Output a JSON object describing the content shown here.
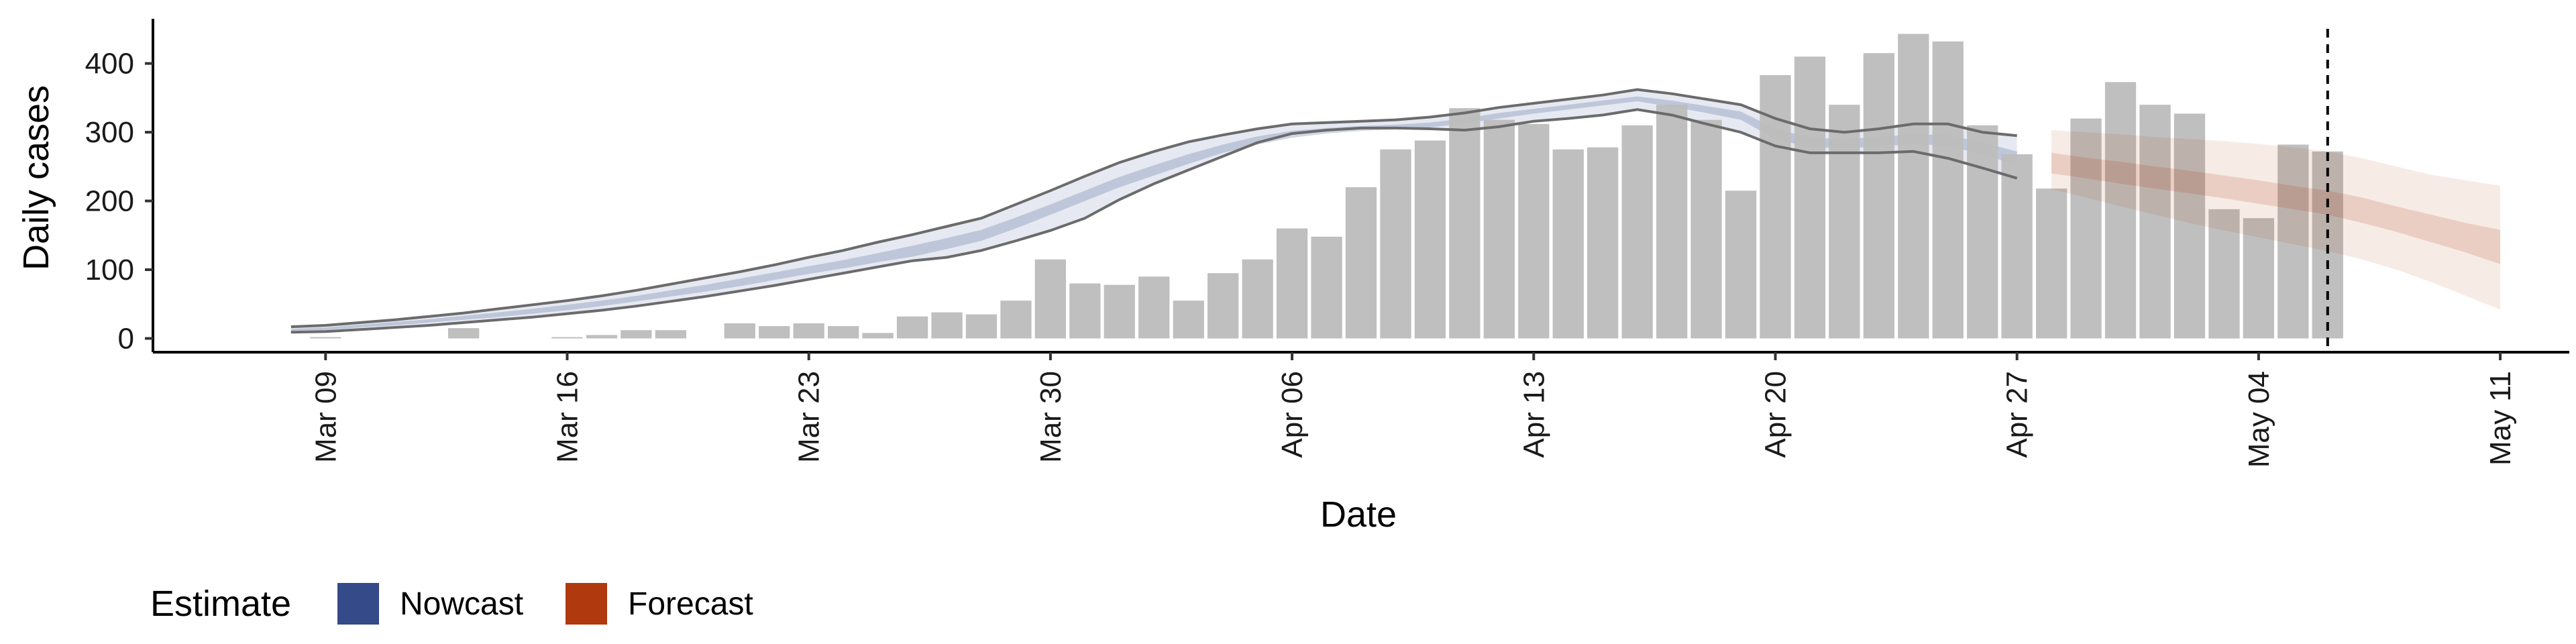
{
  "chart_data": {
    "type": "bar",
    "xlabel": "Date",
    "ylabel": "Daily cases",
    "x_type": "date",
    "ylim": [
      -20,
      465
    ],
    "xlim": [
      "2020-03-04",
      "2020-05-13"
    ],
    "x_ticks": [
      {
        "date": "2020-03-09",
        "label": "Mar 09"
      },
      {
        "date": "2020-03-16",
        "label": "Mar 16"
      },
      {
        "date": "2020-03-23",
        "label": "Mar 23"
      },
      {
        "date": "2020-03-30",
        "label": "Mar 30"
      },
      {
        "date": "2020-04-06",
        "label": "Apr 06"
      },
      {
        "date": "2020-04-13",
        "label": "Apr 13"
      },
      {
        "date": "2020-04-20",
        "label": "Apr 20"
      },
      {
        "date": "2020-04-27",
        "label": "Apr 27"
      },
      {
        "date": "2020-05-04",
        "label": "May 04"
      },
      {
        "date": "2020-05-11",
        "label": "May 11"
      }
    ],
    "y_ticks": [
      0,
      100,
      200,
      300,
      400
    ],
    "grid": false,
    "legend_position": "bottom-left",
    "legend": {
      "title": "Estimate",
      "items": [
        {
          "label": "Nowcast",
          "color": "#344a89"
        },
        {
          "label": "Forecast",
          "color": "#b0390d"
        }
      ]
    },
    "observed_cases": {
      "color": "#bdbdbd",
      "dates": [
        "2020-03-08",
        "2020-03-09",
        "2020-03-10",
        "2020-03-11",
        "2020-03-12",
        "2020-03-13",
        "2020-03-14",
        "2020-03-15",
        "2020-03-16",
        "2020-03-17",
        "2020-03-18",
        "2020-03-19",
        "2020-03-20",
        "2020-03-21",
        "2020-03-22",
        "2020-03-23",
        "2020-03-24",
        "2020-03-25",
        "2020-03-26",
        "2020-03-27",
        "2020-03-28",
        "2020-03-29",
        "2020-03-30",
        "2020-03-31",
        "2020-04-01",
        "2020-04-02",
        "2020-04-03",
        "2020-04-04",
        "2020-04-05",
        "2020-04-06",
        "2020-04-07",
        "2020-04-08",
        "2020-04-09",
        "2020-04-10",
        "2020-04-11",
        "2020-04-12",
        "2020-04-13",
        "2020-04-14",
        "2020-04-15",
        "2020-04-16",
        "2020-04-17",
        "2020-04-18",
        "2020-04-19",
        "2020-04-20",
        "2020-04-21",
        "2020-04-22",
        "2020-04-23",
        "2020-04-24",
        "2020-04-25",
        "2020-04-26",
        "2020-04-27",
        "2020-04-28",
        "2020-04-29",
        "2020-04-30",
        "2020-05-01",
        "2020-05-02",
        "2020-05-03",
        "2020-05-04",
        "2020-05-05",
        "2020-05-06"
      ],
      "values": [
        0,
        2,
        0,
        0,
        0,
        15,
        0,
        0,
        2,
        5,
        12,
        12,
        0,
        22,
        18,
        22,
        18,
        8,
        32,
        38,
        35,
        55,
        115,
        80,
        78,
        90,
        55,
        95,
        115,
        160,
        148,
        220,
        275,
        288,
        335,
        318,
        312,
        275,
        278,
        310,
        340,
        318,
        215,
        383,
        410,
        340,
        415,
        443,
        432,
        310,
        268,
        218,
        320,
        373,
        340,
        327,
        188,
        175,
        282,
        272
      ]
    },
    "nowcast": {
      "color": "#344a89",
      "dates": [
        "2020-03-08",
        "2020-03-09",
        "2020-03-10",
        "2020-03-11",
        "2020-03-12",
        "2020-03-13",
        "2020-03-14",
        "2020-03-15",
        "2020-03-16",
        "2020-03-17",
        "2020-03-18",
        "2020-03-19",
        "2020-03-20",
        "2020-03-21",
        "2020-03-22",
        "2020-03-23",
        "2020-03-24",
        "2020-03-25",
        "2020-03-26",
        "2020-03-27",
        "2020-03-28",
        "2020-03-29",
        "2020-03-30",
        "2020-03-31",
        "2020-04-01",
        "2020-04-02",
        "2020-04-03",
        "2020-04-04",
        "2020-04-05",
        "2020-04-06",
        "2020-04-07",
        "2020-04-08",
        "2020-04-09",
        "2020-04-10",
        "2020-04-11",
        "2020-04-12",
        "2020-04-13",
        "2020-04-14",
        "2020-04-15",
        "2020-04-16",
        "2020-04-17",
        "2020-04-18",
        "2020-04-19",
        "2020-04-20",
        "2020-04-21",
        "2020-04-22",
        "2020-04-23",
        "2020-04-24",
        "2020-04-25",
        "2020-04-26",
        "2020-04-27"
      ],
      "upper_90": [
        17,
        19,
        23,
        27,
        32,
        37,
        43,
        49,
        55,
        62,
        70,
        79,
        88,
        97,
        107,
        118,
        128,
        140,
        151,
        163,
        175,
        195,
        215,
        236,
        256,
        272,
        286,
        296,
        305,
        312,
        314,
        316,
        318,
        322,
        328,
        336,
        342,
        348,
        354,
        362,
        356,
        348,
        340,
        320,
        305,
        300,
        305,
        312,
        312,
        300,
        295
      ],
      "upper_50": [
        14,
        16,
        20,
        24,
        28,
        33,
        38,
        43,
        49,
        55,
        62,
        70,
        78,
        87,
        96,
        105,
        114,
        124,
        135,
        146,
        158,
        176,
        195,
        215,
        235,
        252,
        268,
        282,
        294,
        302,
        306,
        309,
        311,
        314,
        320,
        328,
        334,
        340,
        346,
        352,
        346,
        338,
        330,
        305,
        292,
        290,
        293,
        297,
        296,
        285,
        272
      ],
      "lower_50": [
        11,
        12,
        16,
        19,
        23,
        27,
        31,
        36,
        41,
        47,
        54,
        61,
        68,
        76,
        85,
        94,
        102,
        111,
        119,
        130,
        142,
        160,
        180,
        200,
        220,
        237,
        254,
        270,
        282,
        292,
        298,
        302,
        304,
        307,
        313,
        320,
        327,
        333,
        339,
        345,
        337,
        328,
        318,
        290,
        278,
        277,
        279,
        283,
        280,
        268,
        252
      ],
      "lower_90": [
        9,
        10,
        13,
        16,
        19,
        23,
        27,
        31,
        36,
        41,
        47,
        54,
        61,
        69,
        77,
        86,
        95,
        104,
        113,
        118,
        128,
        142,
        157,
        175,
        202,
        225,
        245,
        265,
        285,
        298,
        303,
        306,
        306,
        305,
        303,
        308,
        316,
        320,
        325,
        333,
        325,
        312,
        300,
        280,
        270,
        270,
        270,
        272,
        262,
        248,
        233
      ]
    },
    "forecast": {
      "color": "#b0390d",
      "dates": [
        "2020-04-28",
        "2020-04-29",
        "2020-04-30",
        "2020-05-01",
        "2020-05-02",
        "2020-05-03",
        "2020-05-04",
        "2020-05-05",
        "2020-05-06",
        "2020-05-07",
        "2020-05-08",
        "2020-05-09",
        "2020-05-10",
        "2020-05-11"
      ],
      "upper_90": [
        303,
        300,
        297,
        293,
        290,
        287,
        283,
        278,
        272,
        262,
        250,
        238,
        230,
        222
      ],
      "upper_50": [
        270,
        263,
        257,
        250,
        244,
        237,
        230,
        222,
        215,
        205,
        192,
        180,
        168,
        158
      ],
      "lower_50": [
        240,
        233,
        225,
        218,
        211,
        204,
        196,
        188,
        180,
        168,
        155,
        140,
        125,
        108
      ],
      "lower_90": [
        217,
        205,
        192,
        180,
        168,
        157,
        147,
        137,
        127,
        115,
        100,
        82,
        62,
        42
      ]
    },
    "annotations": [
      {
        "type": "vline",
        "date": "2020-05-06",
        "style": "dashed"
      }
    ]
  }
}
